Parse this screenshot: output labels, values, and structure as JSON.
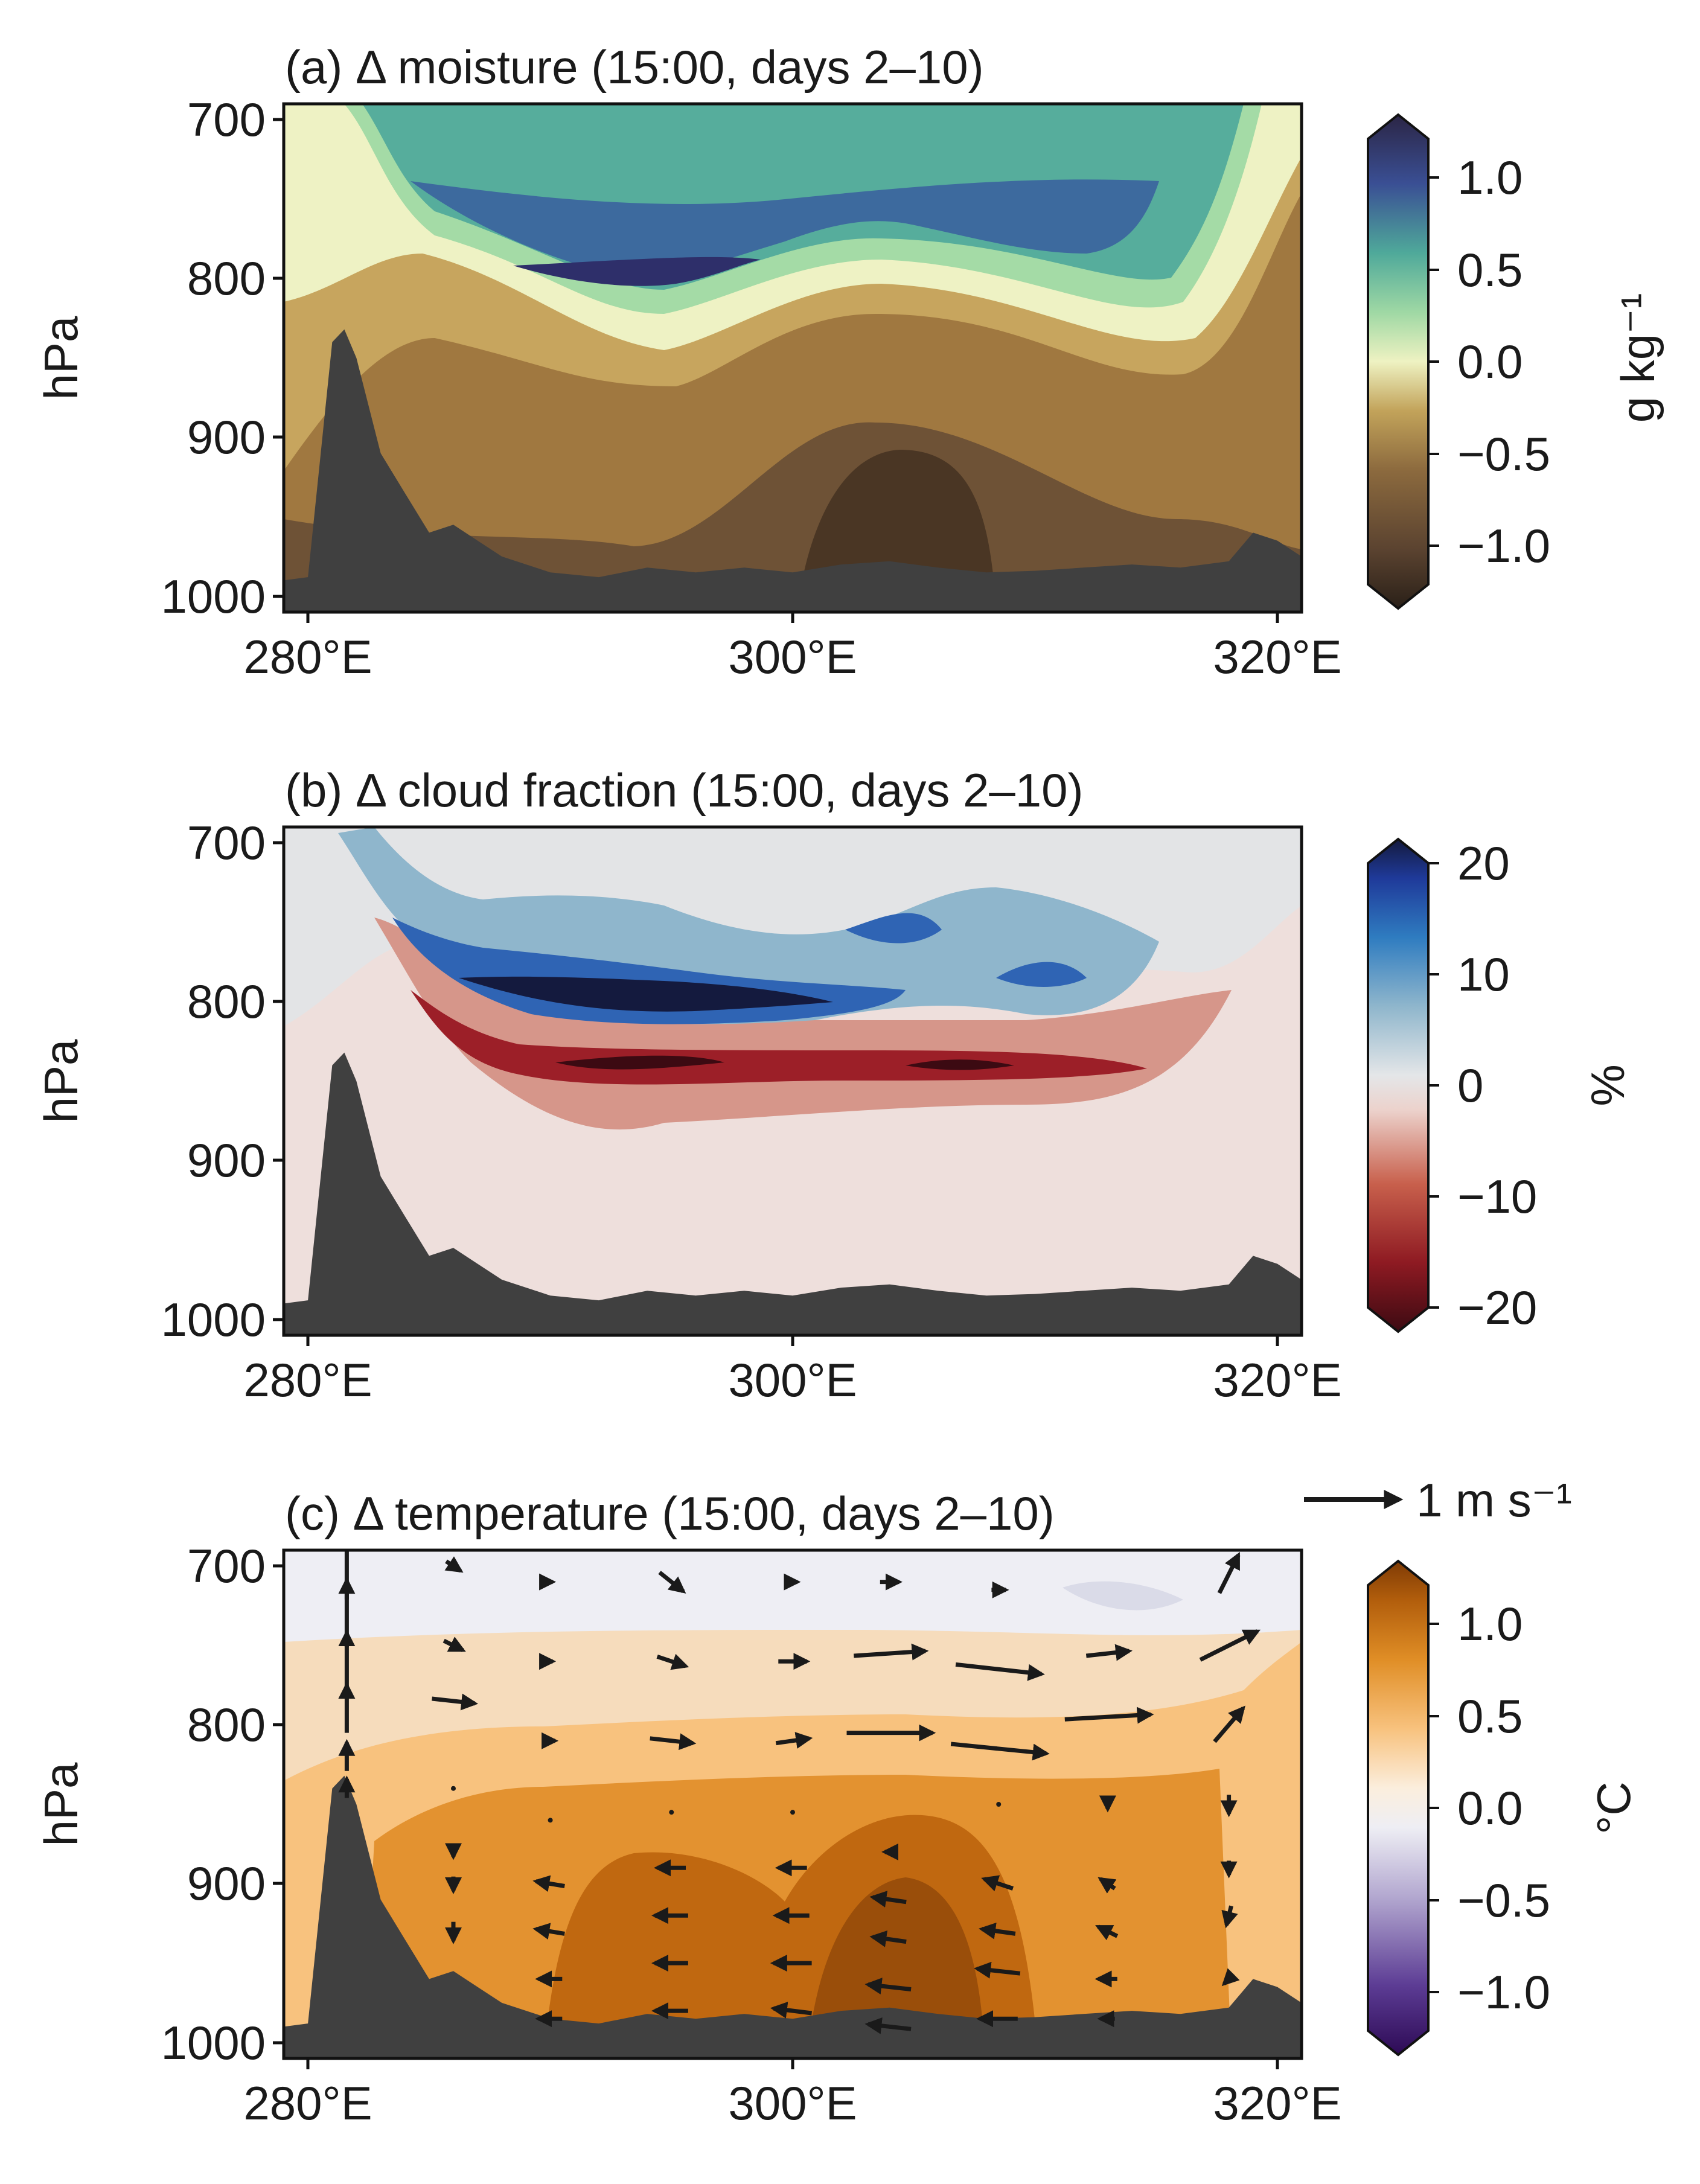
{
  "figure": {
    "panels": [
      {
        "title": "(a) Δ moisture (15:00, days 2–10)",
        "ylabel": "hPa",
        "yticks": [
          "700",
          "800",
          "900",
          "1000"
        ],
        "xticks": [
          "280°E",
          "300°E",
          "320°E"
        ],
        "colorbar": {
          "label": "g kg⁻¹",
          "ticks": [
            "1.0",
            "0.5",
            "0.0",
            "−0.5",
            "−1.0"
          ]
        }
      },
      {
        "title": "(b) Δ cloud fraction (15:00, days 2–10)",
        "ylabel": "hPa",
        "yticks": [
          "700",
          "800",
          "900",
          "1000"
        ],
        "xticks": [
          "280°E",
          "300°E",
          "320°E"
        ],
        "colorbar": {
          "label": "%",
          "ticks": [
            "20",
            "10",
            "0",
            "−10",
            "−20"
          ]
        }
      },
      {
        "title": "(c) Δ temperature (15:00, days 2–10)",
        "ylabel": "hPa",
        "yticks": [
          "700",
          "800",
          "900",
          "1000"
        ],
        "xticks": [
          "280°E",
          "300°E",
          "320°E"
        ],
        "colorbar": {
          "label": "°C",
          "ticks": [
            "1.0",
            "0.5",
            "0.0",
            "−0.5",
            "−1.0"
          ]
        },
        "quiver_key": "1 m s⁻¹"
      }
    ]
  },
  "chart_data": [
    {
      "type": "heatmap",
      "title": "(a) Δ moisture (15:00, days 2–10)",
      "xlabel": "",
      "ylabel": "hPa",
      "xlim": [
        279,
        321
      ],
      "ylim": [
        1010,
        690
      ],
      "yaxis_inverted": true,
      "xticks": [
        280,
        300,
        320
      ],
      "yticks": [
        700,
        800,
        900,
        1000
      ],
      "colormap": "brown-to-green-to-navy (diverging)",
      "colorbar": {
        "label": "g kg⁻¹",
        "range": [
          -1.25,
          1.25
        ],
        "extend": "both",
        "ticks": [
          -1.0,
          -0.5,
          0.0,
          0.5,
          1.0
        ]
      },
      "approx_field": {
        "description": "negative (drying) in lower layer near surface, positive (moistening) band aloft",
        "x": [
          280,
          282,
          285,
          290,
          295,
          300,
          305,
          310,
          315,
          318,
          320
        ],
        "zero_contour_pressure_hPa": [
          700,
          720,
          820,
          860,
          860,
          830,
          860,
          860,
          830,
          720,
          700
        ],
        "max_positive_pressure_hPa": 800,
        "max_positive_value": 0.9,
        "min_negative_value": -1.2,
        "min_negative_location": {
          "x": 303,
          "pressure_hPa": 990
        }
      },
      "terrain": {
        "x": [
          279,
          280,
          281,
          281.5,
          282,
          283,
          284,
          285,
          286,
          287,
          288,
          290,
          292,
          294,
          296,
          298,
          300,
          302,
          304,
          306,
          308,
          310,
          312,
          314,
          316,
          318,
          319,
          320,
          321
        ],
        "surface_pressure_hPa": [
          990,
          988,
          840,
          832,
          850,
          910,
          935,
          960,
          955,
          965,
          975,
          985,
          988,
          982,
          985,
          982,
          985,
          980,
          978,
          982,
          985,
          984,
          982,
          980,
          982,
          978,
          960,
          965,
          975
        ]
      }
    },
    {
      "type": "heatmap",
      "title": "(b) Δ cloud fraction (15:00, days 2–10)",
      "xlabel": "",
      "ylabel": "hPa",
      "xlim": [
        279,
        321
      ],
      "ylim": [
        1010,
        690
      ],
      "yaxis_inverted": true,
      "xticks": [
        280,
        300,
        320
      ],
      "yticks": [
        700,
        800,
        900,
        1000
      ],
      "colormap": "dark red to white to navy (diverging)",
      "colorbar": {
        "label": "%",
        "range": [
          -20,
          20
        ],
        "extend": "both",
        "ticks": [
          -20,
          -10,
          0,
          10,
          20
        ]
      },
      "approx_field": {
        "description": "positive (blue) band above ~810 hPa, negative (red) band below at ~850 hPa, tracking the cloud top",
        "x": [
          282,
          285,
          290,
          295,
          300,
          305,
          310,
          315
        ],
        "positive_band_pressure_hPa": [
          700,
          770,
          805,
          805,
          800,
          770,
          780,
          790
        ],
        "negative_band_pressure_hPa": [
          760,
          830,
          860,
          855,
          855,
          850,
          855,
          850
        ],
        "max_positive_value": 20,
        "min_negative_value": -20
      },
      "terrain": {
        "x": [
          279,
          280,
          281,
          281.5,
          282,
          283,
          284,
          285,
          286,
          287,
          288,
          290,
          292,
          294,
          296,
          298,
          300,
          302,
          304,
          306,
          308,
          310,
          312,
          314,
          316,
          318,
          319,
          320,
          321
        ],
        "surface_pressure_hPa": [
          990,
          988,
          840,
          832,
          850,
          910,
          935,
          960,
          955,
          965,
          975,
          985,
          988,
          982,
          985,
          982,
          985,
          980,
          978,
          982,
          985,
          984,
          982,
          980,
          982,
          978,
          960,
          965,
          975
        ]
      }
    },
    {
      "type": "heatmap",
      "title": "(c) Δ temperature (15:00, days 2–10)",
      "xlabel": "",
      "ylabel": "hPa",
      "xlim": [
        279,
        321
      ],
      "ylim": [
        1010,
        690
      ],
      "yaxis_inverted": true,
      "xticks": [
        280,
        300,
        320
      ],
      "yticks": [
        700,
        800,
        900,
        1000
      ],
      "colormap": "purple to white to orange (diverging)",
      "colorbar": {
        "label": "°C",
        "range": [
          -1.25,
          1.25
        ],
        "extend": "both",
        "ticks": [
          -1.0,
          -0.5,
          0.0,
          0.5,
          1.0
        ]
      },
      "approx_field": {
        "description": "warming below ~820 hPa strongest near 990-900 hPa (~1.0 °C), near zero aloft",
        "max_positive_value": 1.0,
        "max_location": {
          "x": 303,
          "pressure_hPa": 950
        }
      },
      "quiver": {
        "key_label": "1 m s⁻¹",
        "key_length_ms": 1.0,
        "vectors": [
          {
            "x": 281.6,
            "p": 700,
            "u": 0.0,
            "w": 0.7
          },
          {
            "x": 281.6,
            "p": 730,
            "u": 0.0,
            "w": 0.7
          },
          {
            "x": 281.6,
            "p": 760,
            "u": 0.0,
            "w": 0.6
          },
          {
            "x": 281.6,
            "p": 790,
            "u": 0.0,
            "w": 0.5
          },
          {
            "x": 281.6,
            "p": 820,
            "u": 0.0,
            "w": 0.3
          },
          {
            "x": 281.6,
            "p": 840,
            "u": 0.0,
            "w": 0.2
          },
          {
            "x": 286,
            "p": 700,
            "u": 0.15,
            "w": -0.1
          },
          {
            "x": 286,
            "p": 750,
            "u": 0.2,
            "w": -0.1
          },
          {
            "x": 286,
            "p": 785,
            "u": 0.45,
            "w": -0.05
          },
          {
            "x": 286,
            "p": 840,
            "u": 0.0,
            "w": 0.0
          },
          {
            "x": 286,
            "p": 880,
            "u": 0.0,
            "w": -0.1
          },
          {
            "x": 286,
            "p": 900,
            "u": 0.0,
            "w": -0.15
          },
          {
            "x": 286,
            "p": 930,
            "u": 0.0,
            "w": -0.2
          },
          {
            "x": 290,
            "p": 710,
            "u": 0.05,
            "w": 0.0
          },
          {
            "x": 290,
            "p": 760,
            "u": 0.05,
            "w": 0.0
          },
          {
            "x": 290,
            "p": 810,
            "u": 0.1,
            "w": 0.0
          },
          {
            "x": 290,
            "p": 860,
            "u": 0.0,
            "w": 0.0
          },
          {
            "x": 290,
            "p": 900,
            "u": -0.3,
            "w": 0.05
          },
          {
            "x": 290,
            "p": 930,
            "u": -0.3,
            "w": 0.05
          },
          {
            "x": 290,
            "p": 960,
            "u": -0.25,
            "w": 0.0
          },
          {
            "x": 290,
            "p": 985,
            "u": -0.25,
            "w": 0.0
          },
          {
            "x": 295,
            "p": 710,
            "u": 0.25,
            "w": -0.2
          },
          {
            "x": 295,
            "p": 760,
            "u": 0.3,
            "w": -0.1
          },
          {
            "x": 295,
            "p": 810,
            "u": 0.45,
            "w": -0.05
          },
          {
            "x": 295,
            "p": 855,
            "u": 0.0,
            "w": 0.0
          },
          {
            "x": 295,
            "p": 890,
            "u": -0.3,
            "w": 0.0
          },
          {
            "x": 295,
            "p": 920,
            "u": -0.35,
            "w": 0.0
          },
          {
            "x": 295,
            "p": 950,
            "u": -0.35,
            "w": 0.0
          },
          {
            "x": 295,
            "p": 980,
            "u": -0.35,
            "w": 0.0
          },
          {
            "x": 300,
            "p": 710,
            "u": 0.1,
            "w": 0.0
          },
          {
            "x": 300,
            "p": 760,
            "u": 0.3,
            "w": 0.0
          },
          {
            "x": 300,
            "p": 810,
            "u": 0.35,
            "w": 0.05
          },
          {
            "x": 300,
            "p": 855,
            "u": 0.0,
            "w": 0.0
          },
          {
            "x": 300,
            "p": 890,
            "u": -0.3,
            "w": 0.0
          },
          {
            "x": 300,
            "p": 920,
            "u": -0.35,
            "w": 0.0
          },
          {
            "x": 300,
            "p": 950,
            "u": -0.4,
            "w": 0.0
          },
          {
            "x": 300,
            "p": 980,
            "u": -0.4,
            "w": 0.05
          },
          {
            "x": 304,
            "p": 710,
            "u": 0.2,
            "w": 0.0
          },
          {
            "x": 304,
            "p": 755,
            "u": 0.75,
            "w": 0.05
          },
          {
            "x": 304,
            "p": 805,
            "u": 0.9,
            "w": 0.0
          },
          {
            "x": 304,
            "p": 880,
            "u": -0.1,
            "w": 0.0
          },
          {
            "x": 304,
            "p": 910,
            "u": -0.35,
            "w": 0.05
          },
          {
            "x": 304,
            "p": 935,
            "u": -0.35,
            "w": 0.05
          },
          {
            "x": 304,
            "p": 965,
            "u": -0.45,
            "w": 0.05
          },
          {
            "x": 304,
            "p": 990,
            "u": -0.45,
            "w": 0.05
          },
          {
            "x": 308.5,
            "p": 715,
            "u": 0.15,
            "w": 0.0
          },
          {
            "x": 308.5,
            "p": 765,
            "u": 0.9,
            "w": -0.1
          },
          {
            "x": 308.5,
            "p": 815,
            "u": 1.0,
            "w": -0.1
          },
          {
            "x": 308.5,
            "p": 850,
            "u": 0.0,
            "w": 0.0
          },
          {
            "x": 308.5,
            "p": 900,
            "u": -0.3,
            "w": 0.1
          },
          {
            "x": 308.5,
            "p": 930,
            "u": -0.35,
            "w": 0.05
          },
          {
            "x": 308.5,
            "p": 955,
            "u": -0.45,
            "w": 0.05
          },
          {
            "x": 308.5,
            "p": 985,
            "u": -0.4,
            "w": 0.0
          },
          {
            "x": 313,
            "p": 755,
            "u": 0.45,
            "w": 0.05
          },
          {
            "x": 313,
            "p": 795,
            "u": 0.9,
            "w": 0.05
          },
          {
            "x": 313,
            "p": 850,
            "u": 0.0,
            "w": -0.1
          },
          {
            "x": 313,
            "p": 900,
            "u": -0.15,
            "w": 0.1
          },
          {
            "x": 313,
            "p": 930,
            "u": -0.2,
            "w": 0.1
          },
          {
            "x": 313,
            "p": 960,
            "u": -0.2,
            "w": 0.0
          },
          {
            "x": 313,
            "p": 985,
            "u": -0.15,
            "w": 0.0
          },
          {
            "x": 318,
            "p": 705,
            "u": 0.2,
            "w": 0.4
          },
          {
            "x": 318,
            "p": 750,
            "u": 0.6,
            "w": 0.3
          },
          {
            "x": 318,
            "p": 800,
            "u": 0.3,
            "w": 0.35
          },
          {
            "x": 318,
            "p": 850,
            "u": 0.0,
            "w": -0.2
          },
          {
            "x": 318,
            "p": 890,
            "u": 0.0,
            "w": -0.15
          },
          {
            "x": 318,
            "p": 920,
            "u": -0.05,
            "w": -0.2
          },
          {
            "x": 318,
            "p": 960,
            "u": -0.1,
            "w": -0.1
          }
        ]
      },
      "terrain": {
        "x": [
          279,
          280,
          281,
          281.5,
          282,
          283,
          284,
          285,
          286,
          287,
          288,
          290,
          292,
          294,
          296,
          298,
          300,
          302,
          304,
          306,
          308,
          310,
          312,
          314,
          316,
          318,
          319,
          320,
          321
        ],
        "surface_pressure_hPa": [
          990,
          988,
          840,
          832,
          850,
          910,
          935,
          960,
          955,
          965,
          975,
          985,
          988,
          982,
          985,
          982,
          985,
          980,
          978,
          982,
          985,
          984,
          982,
          980,
          982,
          978,
          960,
          965,
          975
        ]
      }
    }
  ]
}
